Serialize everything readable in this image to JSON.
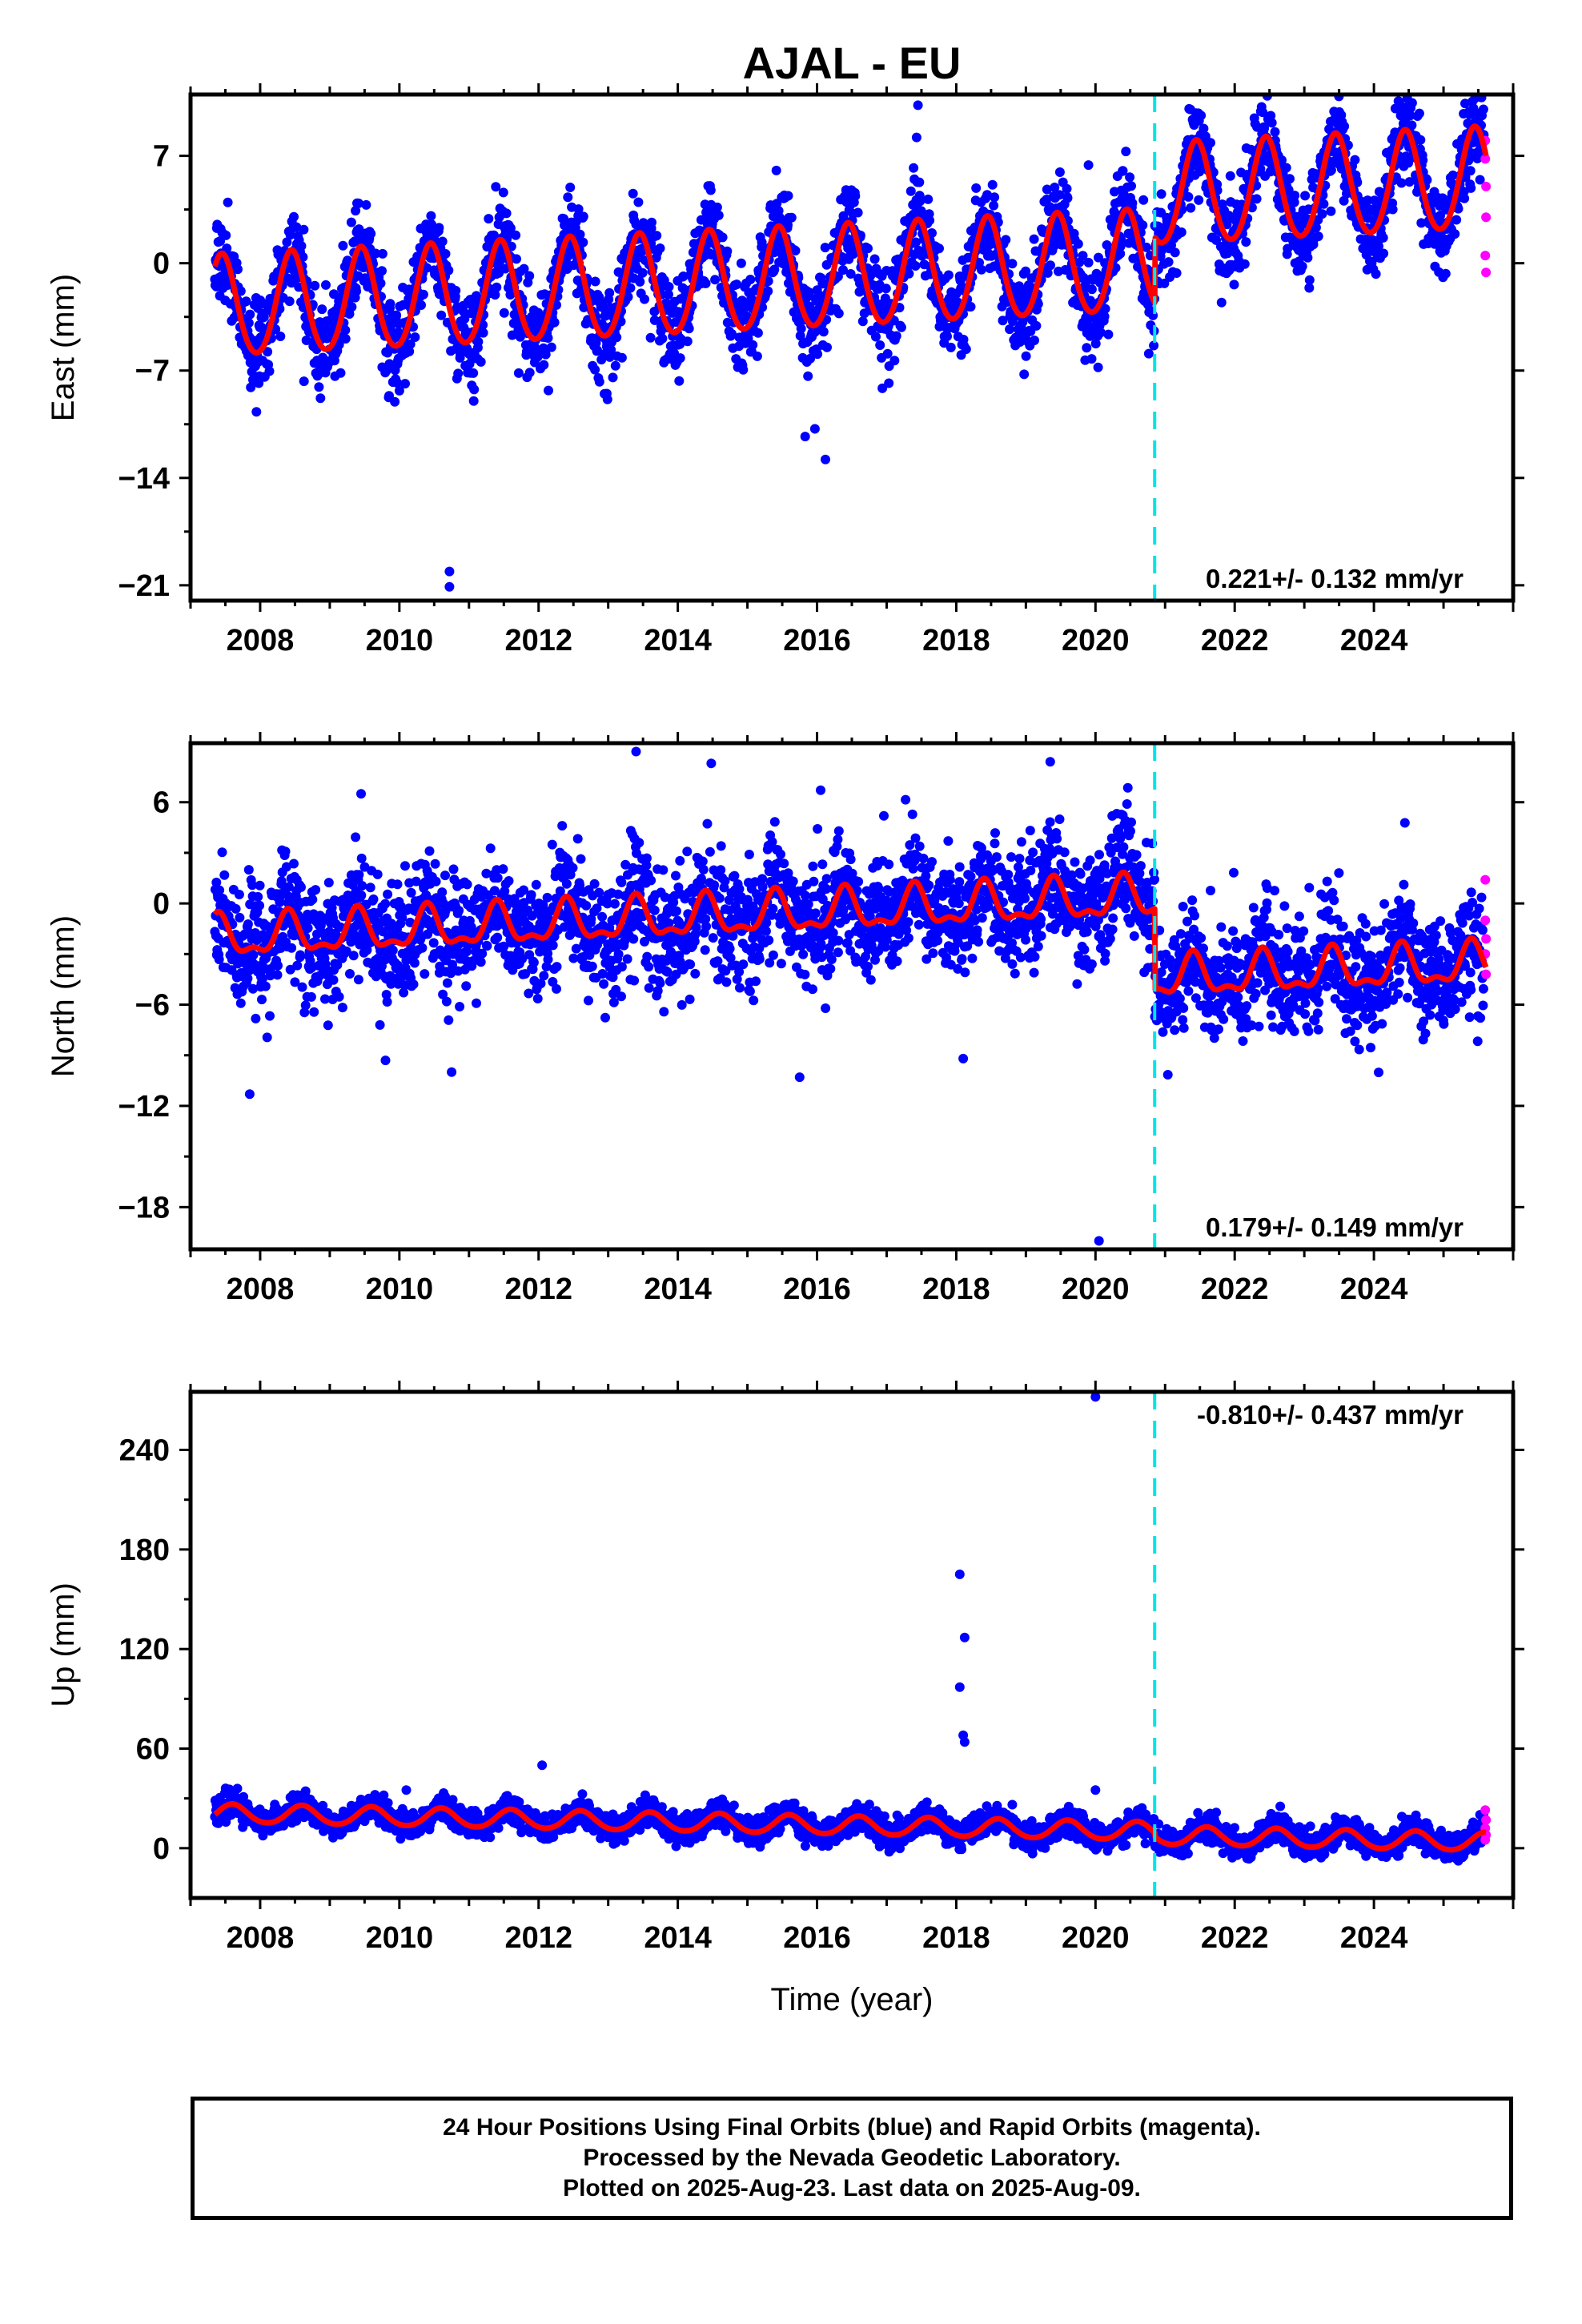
{
  "title": "AJAL - EU",
  "xlabel": "Time (year)",
  "footer": {
    "line1": "24 Hour Positions Using Final Orbits (blue) and Rapid Orbits (magenta).",
    "line2": "Processed by the Nevada Geodetic Laboratory.",
    "line3": "Plotted on 2025-Aug-23. Last data on 2025-Aug-09."
  },
  "colors": {
    "final": "#0000ff",
    "rapid": "#ff00ff",
    "model": "#ff0000",
    "event": "#00e5e5"
  },
  "chart_data": [
    {
      "type": "scatter",
      "component": "east",
      "ylabel": "East (mm)",
      "xlim": [
        2007.0,
        2026.0
      ],
      "ylim": [
        -22,
        11
      ],
      "xticks": [
        2008,
        2010,
        2012,
        2014,
        2016,
        2018,
        2020,
        2022,
        2024
      ],
      "yticks": [
        7,
        0,
        -7,
        -14,
        -21
      ],
      "yticks_labels": [
        "7",
        "0",
        "−7",
        "−14",
        "−21"
      ],
      "data_start": 2007.35,
      "data_end": 2025.61,
      "rapid_start": 2025.58,
      "event_year": 2020.85,
      "rate_label": "0.221+/- 0.132 mm/yr",
      "model": {
        "offset_before": -1.5,
        "offset_after": 2.8,
        "trend": 0.221,
        "annual_amp": 3.3,
        "semiannual_amp": 0.3,
        "phase_peak": 0.45
      },
      "scatter_sigma": 1.5,
      "outliers": [
        [
          2010.72,
          -20.1
        ],
        [
          2010.72,
          -21.1
        ],
        [
          2017.45,
          10.3
        ],
        [
          2017.43,
          8.2
        ],
        [
          2015.83,
          -11.3
        ],
        [
          2015.97,
          -10.8
        ],
        [
          2016.12,
          -12.8
        ],
        [
          2008.63,
          -7.7
        ],
        [
          2012.98,
          -8.5
        ],
        [
          2019.9,
          6.4
        ]
      ],
      "rapid_points": [
        [
          2025.6,
          8.0
        ],
        [
          2025.6,
          6.8
        ],
        [
          2025.61,
          5.0
        ],
        [
          2025.61,
          3.0
        ],
        [
          2025.6,
          0.5
        ],
        [
          2025.61,
          -0.6
        ]
      ]
    },
    {
      "type": "scatter",
      "component": "north",
      "ylabel": "North (mm)",
      "xlim": [
        2007.0,
        2026.0
      ],
      "ylim": [
        -20.5,
        9.5
      ],
      "xticks": [
        2008,
        2010,
        2012,
        2014,
        2016,
        2018,
        2020,
        2022,
        2024
      ],
      "yticks": [
        6,
        0,
        -6,
        -12,
        -18
      ],
      "yticks_labels": [
        "6",
        "0",
        "−6",
        "−12",
        "−18"
      ],
      "data_start": 2007.35,
      "data_end": 2025.61,
      "rapid_start": 2025.58,
      "event_year": 2020.85,
      "rate_label": "0.179+/- 0.149 mm/yr",
      "model": {
        "offset_before": -0.9,
        "offset_after": -5.7,
        "trend": 0.179,
        "annual_amp": 1.1,
        "semiannual_amp": 0.5,
        "phase_peak": 0.4
      },
      "scatter_sigma": 1.7,
      "outliers": [
        [
          2007.85,
          -11.3
        ],
        [
          2009.8,
          -9.3
        ],
        [
          2010.75,
          -10.0
        ],
        [
          2015.75,
          -10.3
        ],
        [
          2018.1,
          -9.2
        ],
        [
          2020.05,
          -20.0
        ],
        [
          2013.4,
          9.0
        ],
        [
          2014.48,
          8.3
        ],
        [
          2019.35,
          8.4
        ],
        [
          2009.45,
          6.5
        ]
      ],
      "rapid_points": [
        [
          2025.6,
          1.4
        ],
        [
          2025.6,
          -1.0
        ],
        [
          2025.61,
          -2.1
        ],
        [
          2025.6,
          -3.0
        ],
        [
          2025.61,
          -4.2
        ]
      ]
    },
    {
      "type": "scatter",
      "component": "up",
      "ylabel": "Up (mm)",
      "xlim": [
        2007.0,
        2026.0
      ],
      "ylim": [
        -30,
        275
      ],
      "xticks": [
        2008,
        2010,
        2012,
        2014,
        2016,
        2018,
        2020,
        2022,
        2024
      ],
      "yticks": [
        240,
        180,
        120,
        60,
        0
      ],
      "yticks_labels": [
        "240",
        "180",
        "120",
        "60",
        "0"
      ],
      "data_start": 2007.35,
      "data_end": 2025.61,
      "rapid_start": 2025.58,
      "event_year": 2020.85,
      "rate_label": "-0.810+/- 0.437 mm/yr",
      "model": {
        "offset_before": 15.5,
        "offset_after": 13.0,
        "trend": -0.81,
        "annual_amp": 5.5,
        "semiannual_amp": 0.5,
        "phase_peak": 0.6
      },
      "scatter_sigma": 4.0,
      "outliers": [
        [
          2020.0,
          272
        ],
        [
          2018.05,
          165
        ],
        [
          2018.12,
          127
        ],
        [
          2018.05,
          97
        ],
        [
          2018.1,
          68
        ],
        [
          2018.12,
          64
        ],
        [
          2012.05,
          50
        ],
        [
          2010.1,
          35
        ],
        [
          2020.0,
          35
        ],
        [
          2015.65,
          27
        ]
      ],
      "rapid_points": [
        [
          2025.6,
          23
        ],
        [
          2025.61,
          17
        ],
        [
          2025.6,
          12
        ],
        [
          2025.61,
          8
        ],
        [
          2025.6,
          5
        ]
      ]
    }
  ]
}
